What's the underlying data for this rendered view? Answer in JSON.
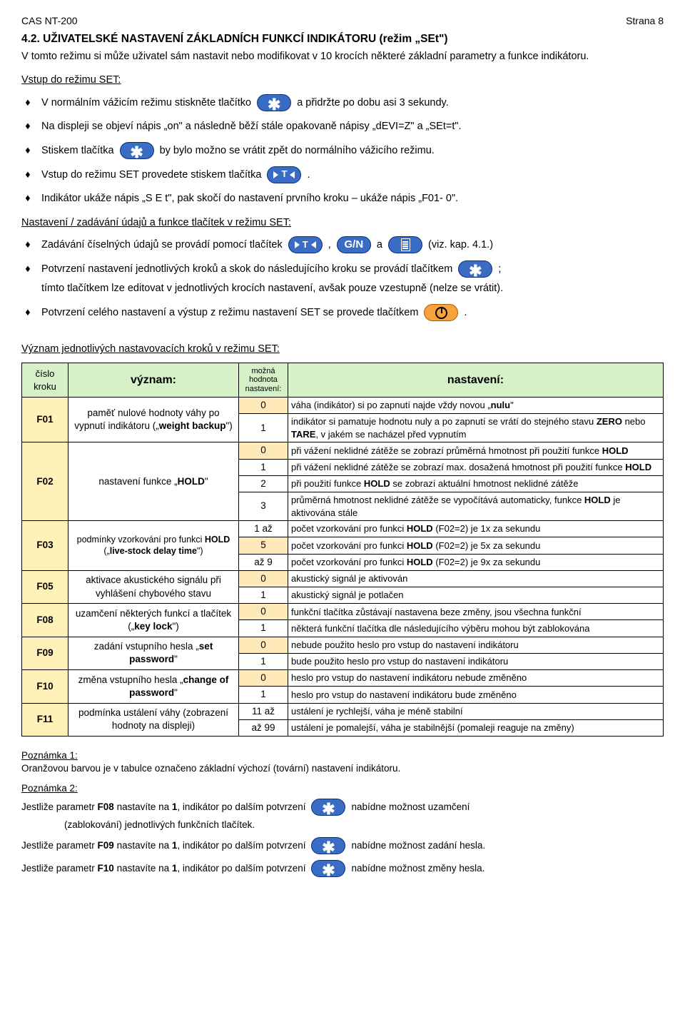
{
  "header": {
    "left": "CAS NT-200",
    "right": "Strana 8"
  },
  "title": "4.2. UŽIVATELSKÉ NASTAVENÍ ZÁKLADNÍCH FUNKCÍ INDIKÁTORU (režim „SEt\")",
  "intro": "V tomto režimu si může uživatel sám nastavit nebo modifikovat v 10 krocích některé základní parametry a funkce indikátoru.",
  "sub1": "Vstup do režimu SET:",
  "b": {
    "b1a": "V normálním vážicím režimu stiskněte tlačítko",
    "b1b": "a přidržte po dobu asi 3 sekundy.",
    "b2": "Na displeji se objeví nápis „on\" a následně běží stále opakovaně nápisy „dEVI=Z\" a „SEt=t\".",
    "b3a": "Stiskem tlačítka",
    "b3b": "by bylo možno se vrátit zpět do normálního vážicího režimu.",
    "b4a": "Vstup do režimu SET provedete stiskem tlačítka",
    "b4b": ".",
    "b5": "Indikátor ukáže nápis „S E t\", pak skočí do nastavení prvního kroku – ukáže nápis „F01- 0\"."
  },
  "sub2": "Nastavení / zadávání údajů a funkce tlačítek v režimu SET:",
  "c": {
    "c1a": "Zadávání číselných údajů se provádí pomocí tlačítek",
    "c1b": ",",
    "c1c": "a",
    "c1d": "(viz. kap. 4.1.)",
    "c2a": "Potvrzení nastavení jednotlivých kroků a skok do následujícího kroku se provádí tlačítkem",
    "c2b": ";",
    "c2c": "tímto tlačítkem lze editovat v jednotlivých krocích nastavení, avšak pouze vzestupně (nelze se vrátit).",
    "c3a": "Potvrzení celého nastavení a výstup z režimu nastavení SET se provede tlačítkem",
    "c3b": "."
  },
  "sub3": "Význam jednotlivých nastavovacích kroků v režimu SET:",
  "btn": {
    "t": "T",
    "gn": "G/N"
  },
  "th": {
    "c1": "číslo kroku",
    "c2": "význam:",
    "c3": "možná hodnota nastavení:",
    "c4": "nastavení:"
  },
  "rows": [
    {
      "code": "F01",
      "mean": "paměť nulové hodnoty váhy po vypnutí indikátoru („weight backup\")",
      "sub": [
        {
          "v": "0",
          "hl": true,
          "d": "váha (indikátor) si po zapnutí najde vždy novou „nulu\""
        },
        {
          "v": "1",
          "hl": false,
          "d": "indikátor si pamatuje hodnotu nuly a po zapnutí se vrátí do stejného stavu ZERO nebo TARE, v jakém se nacházel před vypnutím"
        }
      ]
    },
    {
      "code": "F02",
      "mean": "nastavení funkce „HOLD\"",
      "sub": [
        {
          "v": "0",
          "hl": true,
          "d": "při vážení neklidné zátěže se zobrazí průměrná hmotnost při použití funkce HOLD"
        },
        {
          "v": "1",
          "hl": false,
          "d": "při vážení neklidné zátěže se zobrazí max. dosažená hmotnost při použití funkce HOLD"
        },
        {
          "v": "2",
          "hl": false,
          "d": "při použití funkce HOLD se zobrazí aktuální hmotnost neklidné zátěže"
        },
        {
          "v": "3",
          "hl": false,
          "d": "průměrná hmotnost neklidné zátěže se vypočítává automaticky, funkce HOLD je aktivována stále"
        }
      ]
    },
    {
      "code": "F03",
      "mean": "podmínky vzorkování pro funkci HOLD („live-stock delay time\")",
      "meanSmall": true,
      "sub": [
        {
          "v": "1 až",
          "hl": false,
          "d": "počet vzorkování pro funkci HOLD (F02=2) je 1x za sekundu"
        },
        {
          "v": "5",
          "hl": true,
          "d": "počet vzorkování pro funkci HOLD (F02=2) je 5x za sekundu"
        },
        {
          "v": "až 9",
          "hl": false,
          "d": "počet vzorkování pro funkci HOLD (F02=2) je 9x za sekundu"
        }
      ]
    },
    {
      "code": "F05",
      "mean": "aktivace akustického signálu při vyhlášení chybového stavu",
      "sub": [
        {
          "v": "0",
          "hl": true,
          "d": "akustický signál je aktivován"
        },
        {
          "v": "1",
          "hl": false,
          "d": "akustický signál je potlačen"
        }
      ]
    },
    {
      "code": "F08",
      "mean": "uzamčení některých funkcí a tlačítek („key lock\")",
      "sub": [
        {
          "v": "0",
          "hl": true,
          "d": "funkční tlačítka zůstávají nastavena beze změny, jsou všechna funkční"
        },
        {
          "v": "1",
          "hl": false,
          "d": "některá funkční tlačítka dle následujícího výběru mohou být zablokována"
        }
      ]
    },
    {
      "code": "F09",
      "mean": "zadání vstupního hesla „set password\"",
      "sub": [
        {
          "v": "0",
          "hl": true,
          "d": "nebude použito heslo pro vstup do nastavení indikátoru"
        },
        {
          "v": "1",
          "hl": false,
          "d": "bude použito heslo pro vstup do nastavení indikátoru"
        }
      ]
    },
    {
      "code": "F10",
      "mean": "změna vstupního hesla „change of password\"",
      "sub": [
        {
          "v": "0",
          "hl": true,
          "d": "heslo pro vstup do nastavení indikátoru nebude změněno"
        },
        {
          "v": "1",
          "hl": false,
          "d": "heslo pro vstup do nastavení indikátoru bude změněno"
        }
      ]
    },
    {
      "code": "F11",
      "mean": "podmínka ustálení váhy (zobrazení hodnoty na displeji)",
      "sub": [
        {
          "v": "11 až",
          "hl": false,
          "d": "ustálení je rychlejší, váha je méně stabilní"
        },
        {
          "v": "až 99",
          "hl": false,
          "d": "ustálení je pomalejší, váha je stabilnější (pomaleji reaguje na změny)"
        }
      ]
    }
  ],
  "foot": {
    "n1t": "Poznámka 1:",
    "n1": "Oranžovou barvou je v tabulce označeno základní výchozí (tovární) nastavení indikátoru.",
    "n2t": "Poznámka 2:",
    "f08a": "Jestliže parametr F08 nastavíte na 1, indikátor po dalším potvrzení",
    "f08b": "nabídne možnost uzamčení",
    "f08c": "(zablokování) jednotlivých funkčních tlačítek.",
    "f09a": "Jestliže parametr F09 nastavíte na 1, indikátor po dalším potvrzení",
    "f09b": "nabídne možnost zadání hesla.",
    "f10a": "Jestliže parametr F10 nastavíte na 1, indikátor po dalším potvrzení",
    "f10b": "nabídne možnost změny hesla."
  }
}
